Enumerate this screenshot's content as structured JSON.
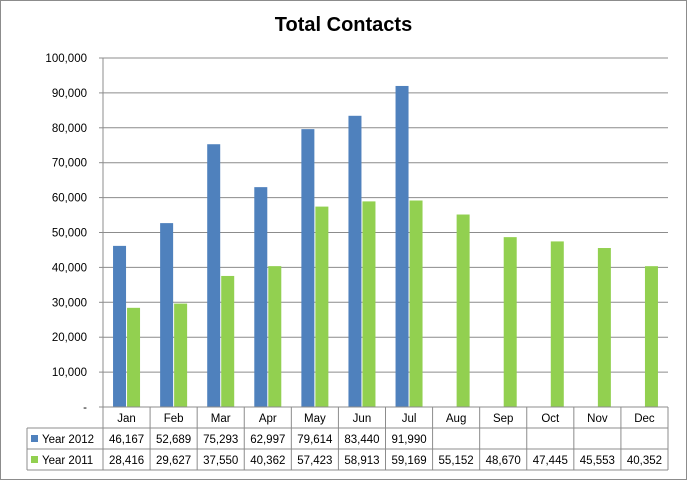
{
  "chart_data": {
    "type": "bar",
    "title": "Total Contacts",
    "categories": [
      "Jan",
      "Feb",
      "Mar",
      "Apr",
      "May",
      "Jun",
      "Jul",
      "Aug",
      "Sep",
      "Oct",
      "Nov",
      "Dec"
    ],
    "ylim": [
      0,
      100000
    ],
    "yticks": [
      "-",
      "10,000",
      "20,000",
      "30,000",
      "40,000",
      "50,000",
      "60,000",
      "70,000",
      "80,000",
      "90,000",
      "100,000"
    ],
    "grid": true,
    "legend": "data table, left",
    "series": [
      {
        "name": "Year 2012",
        "color": "#4f81bd",
        "values": [
          46167,
          52689,
          75293,
          62997,
          79614,
          83440,
          91990,
          null,
          null,
          null,
          null,
          null
        ],
        "labels": [
          "46,167",
          "52,689",
          "75,293",
          "62,997",
          "79,614",
          "83,440",
          "91,990",
          "",
          "",
          "",
          "",
          ""
        ]
      },
      {
        "name": "Year 2011",
        "color": "#92d050",
        "values": [
          28416,
          29627,
          37550,
          40362,
          57423,
          58913,
          59169,
          55152,
          48670,
          47445,
          45553,
          40352
        ],
        "labels": [
          "28,416",
          "29,627",
          "37,550",
          "40,362",
          "57,423",
          "58,913",
          "59,169",
          "55,152",
          "48,670",
          "47,445",
          "45,553",
          "40,352"
        ]
      }
    ]
  }
}
